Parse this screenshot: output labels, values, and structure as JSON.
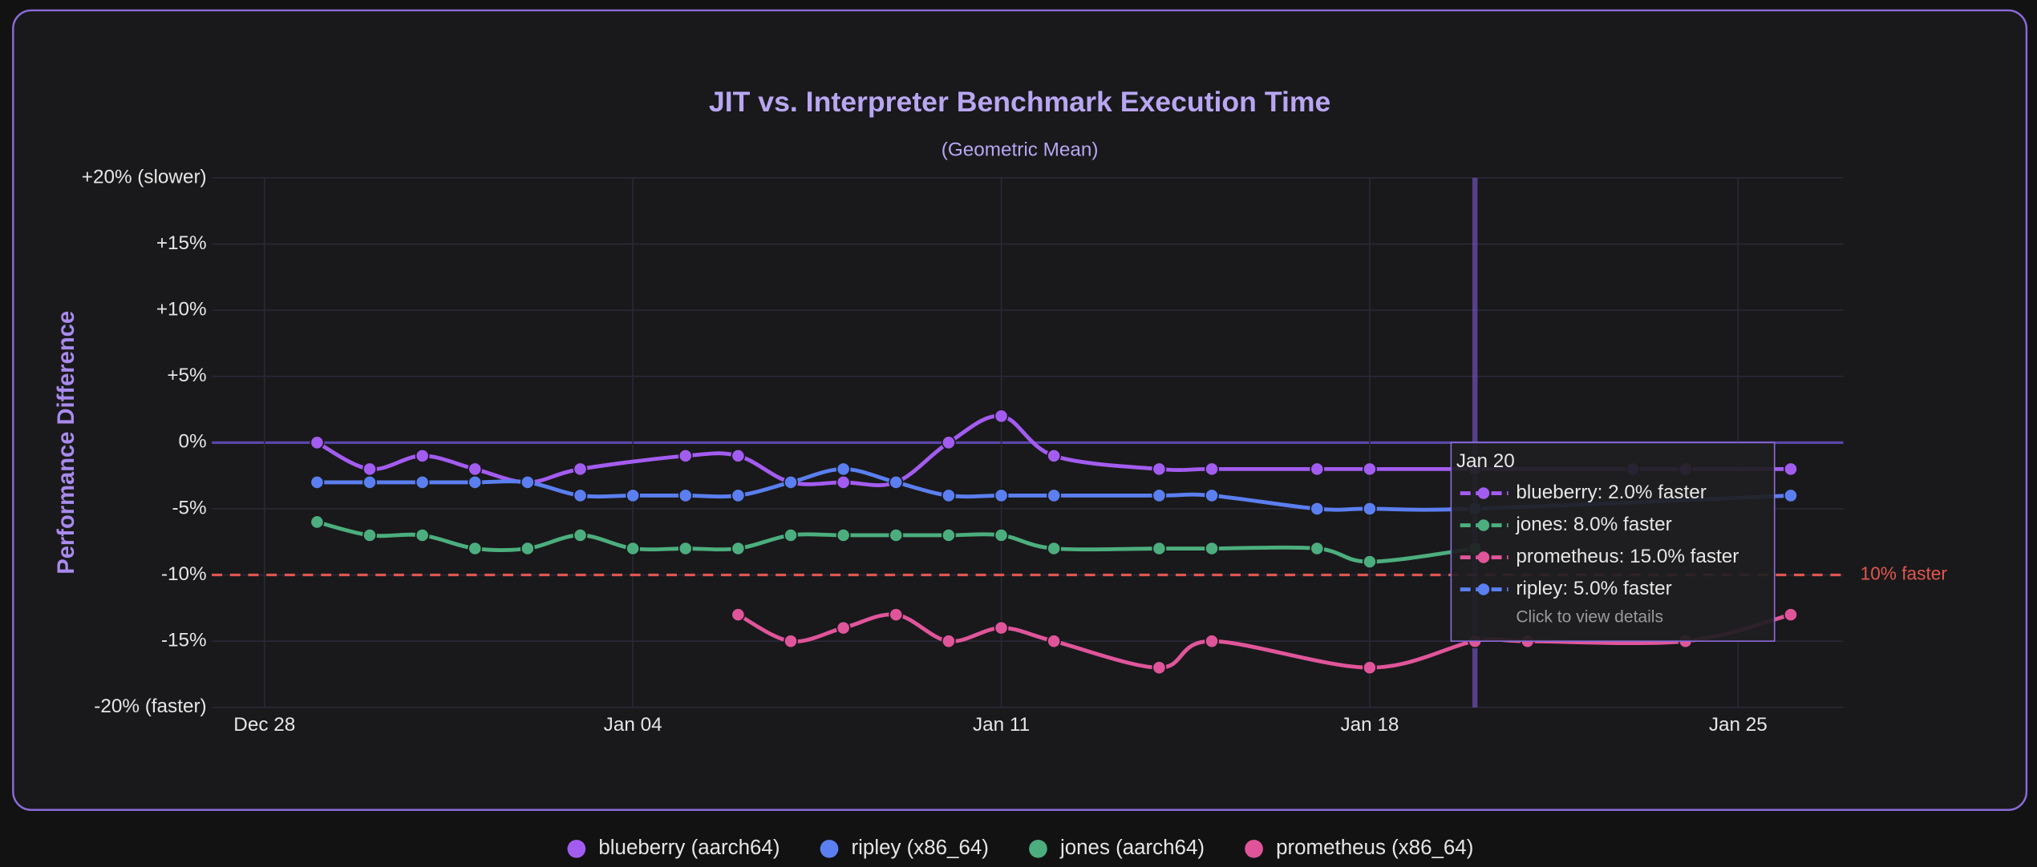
{
  "chart_data": {
    "type": "line",
    "title": "JIT vs. Interpreter Benchmark Execution Time",
    "subtitle": "(Geometric Mean)",
    "y_label": "Performance Difference",
    "xlim": [
      "Dec 27",
      "Jan 27"
    ],
    "xticks": [
      "Dec 28",
      "Jan 04",
      "Jan 11",
      "Jan 18",
      "Jan 25"
    ],
    "ylim": [
      -20,
      20
    ],
    "yticks": [
      {
        "value": 20,
        "label": "+20% (slower)"
      },
      {
        "value": 15,
        "label": "+15%"
      },
      {
        "value": 10,
        "label": "+10%"
      },
      {
        "value": 5,
        "label": "+5%"
      },
      {
        "value": 0,
        "label": "0%"
      },
      {
        "value": -5,
        "label": "-5%"
      },
      {
        "value": -10,
        "label": "-10%"
      },
      {
        "value": -15,
        "label": "-15%"
      },
      {
        "value": -20,
        "label": "-20% (faster)"
      }
    ],
    "grid": true,
    "reference_line": {
      "value": -10,
      "label": "10% faster",
      "color": "#e0564f"
    },
    "series": [
      {
        "name": "blueberry (aarch64)",
        "color": "#a35cf0",
        "x": [
          "Dec 29",
          "Dec 30",
          "Dec 31",
          "Jan 01",
          "Jan 02",
          "Jan 03",
          "Jan 05",
          "Jan 06",
          "Jan 07",
          "Jan 08",
          "Jan 09",
          "Jan 10",
          "Jan 11",
          "Jan 12",
          "Jan 14",
          "Jan 15",
          "Jan 17",
          "Jan 18",
          "Jan 20",
          "Jan 23",
          "Jan 24",
          "Jan 26"
        ],
        "values": [
          0,
          -2,
          -1,
          -2,
          -3,
          -2,
          -1,
          -1,
          -3,
          -3,
          -3,
          0,
          2,
          -1,
          -2,
          -2,
          -2,
          -2,
          -2,
          -2,
          -2,
          -2
        ]
      },
      {
        "name": "ripley (x86_64)",
        "color": "#5b7ff0",
        "x": [
          "Dec 29",
          "Dec 30",
          "Dec 31",
          "Jan 01",
          "Jan 02",
          "Jan 03",
          "Jan 04",
          "Jan 05",
          "Jan 06",
          "Jan 07",
          "Jan 08",
          "Jan 09",
          "Jan 10",
          "Jan 11",
          "Jan 12",
          "Jan 14",
          "Jan 15",
          "Jan 17",
          "Jan 18",
          "Jan 20",
          "Jan 26"
        ],
        "values": [
          -3,
          -3,
          -3,
          -3,
          -3,
          -4,
          -4,
          -4,
          -4,
          -3,
          -2,
          -3,
          -4,
          -4,
          -4,
          -4,
          -4,
          -5,
          -5,
          -5,
          -4
        ]
      },
      {
        "name": "jones (aarch64)",
        "color": "#4cae7e",
        "x": [
          "Dec 29",
          "Dec 30",
          "Dec 31",
          "Jan 01",
          "Jan 02",
          "Jan 03",
          "Jan 04",
          "Jan 05",
          "Jan 06",
          "Jan 07",
          "Jan 08",
          "Jan 09",
          "Jan 10",
          "Jan 11",
          "Jan 12",
          "Jan 14",
          "Jan 15",
          "Jan 17",
          "Jan 18",
          "Jan 20"
        ],
        "values": [
          -6,
          -7,
          -7,
          -8,
          -8,
          -7,
          -8,
          -8,
          -8,
          -7,
          -7,
          -7,
          -7,
          -7,
          -8,
          -8,
          -8,
          -8,
          -9,
          -8
        ]
      },
      {
        "name": "prometheus (x86_64)",
        "color": "#e0559a",
        "x": [
          "Jan 06",
          "Jan 07",
          "Jan 08",
          "Jan 09",
          "Jan 10",
          "Jan 11",
          "Jan 12",
          "Jan 14",
          "Jan 15",
          "Jan 18",
          "Jan 20",
          "Jan 21",
          "Jan 24",
          "Jan 26"
        ],
        "values": [
          -13,
          -15,
          -14,
          -13,
          -15,
          -14,
          -15,
          -17,
          -15,
          -17,
          -15,
          -15,
          -15,
          -13
        ]
      }
    ],
    "tooltip": {
      "title": "Jan 20",
      "items": [
        {
          "text": "blueberry: 2.0% faster",
          "color": "#a35cf0"
        },
        {
          "text": "jones: 8.0% faster",
          "color": "#4cae7e"
        },
        {
          "text": "prometheus: 15.0% faster",
          "color": "#e0559a"
        },
        {
          "text": "ripley: 5.0% faster",
          "color": "#5b7ff0"
        }
      ],
      "hint": "Click to view details"
    }
  }
}
